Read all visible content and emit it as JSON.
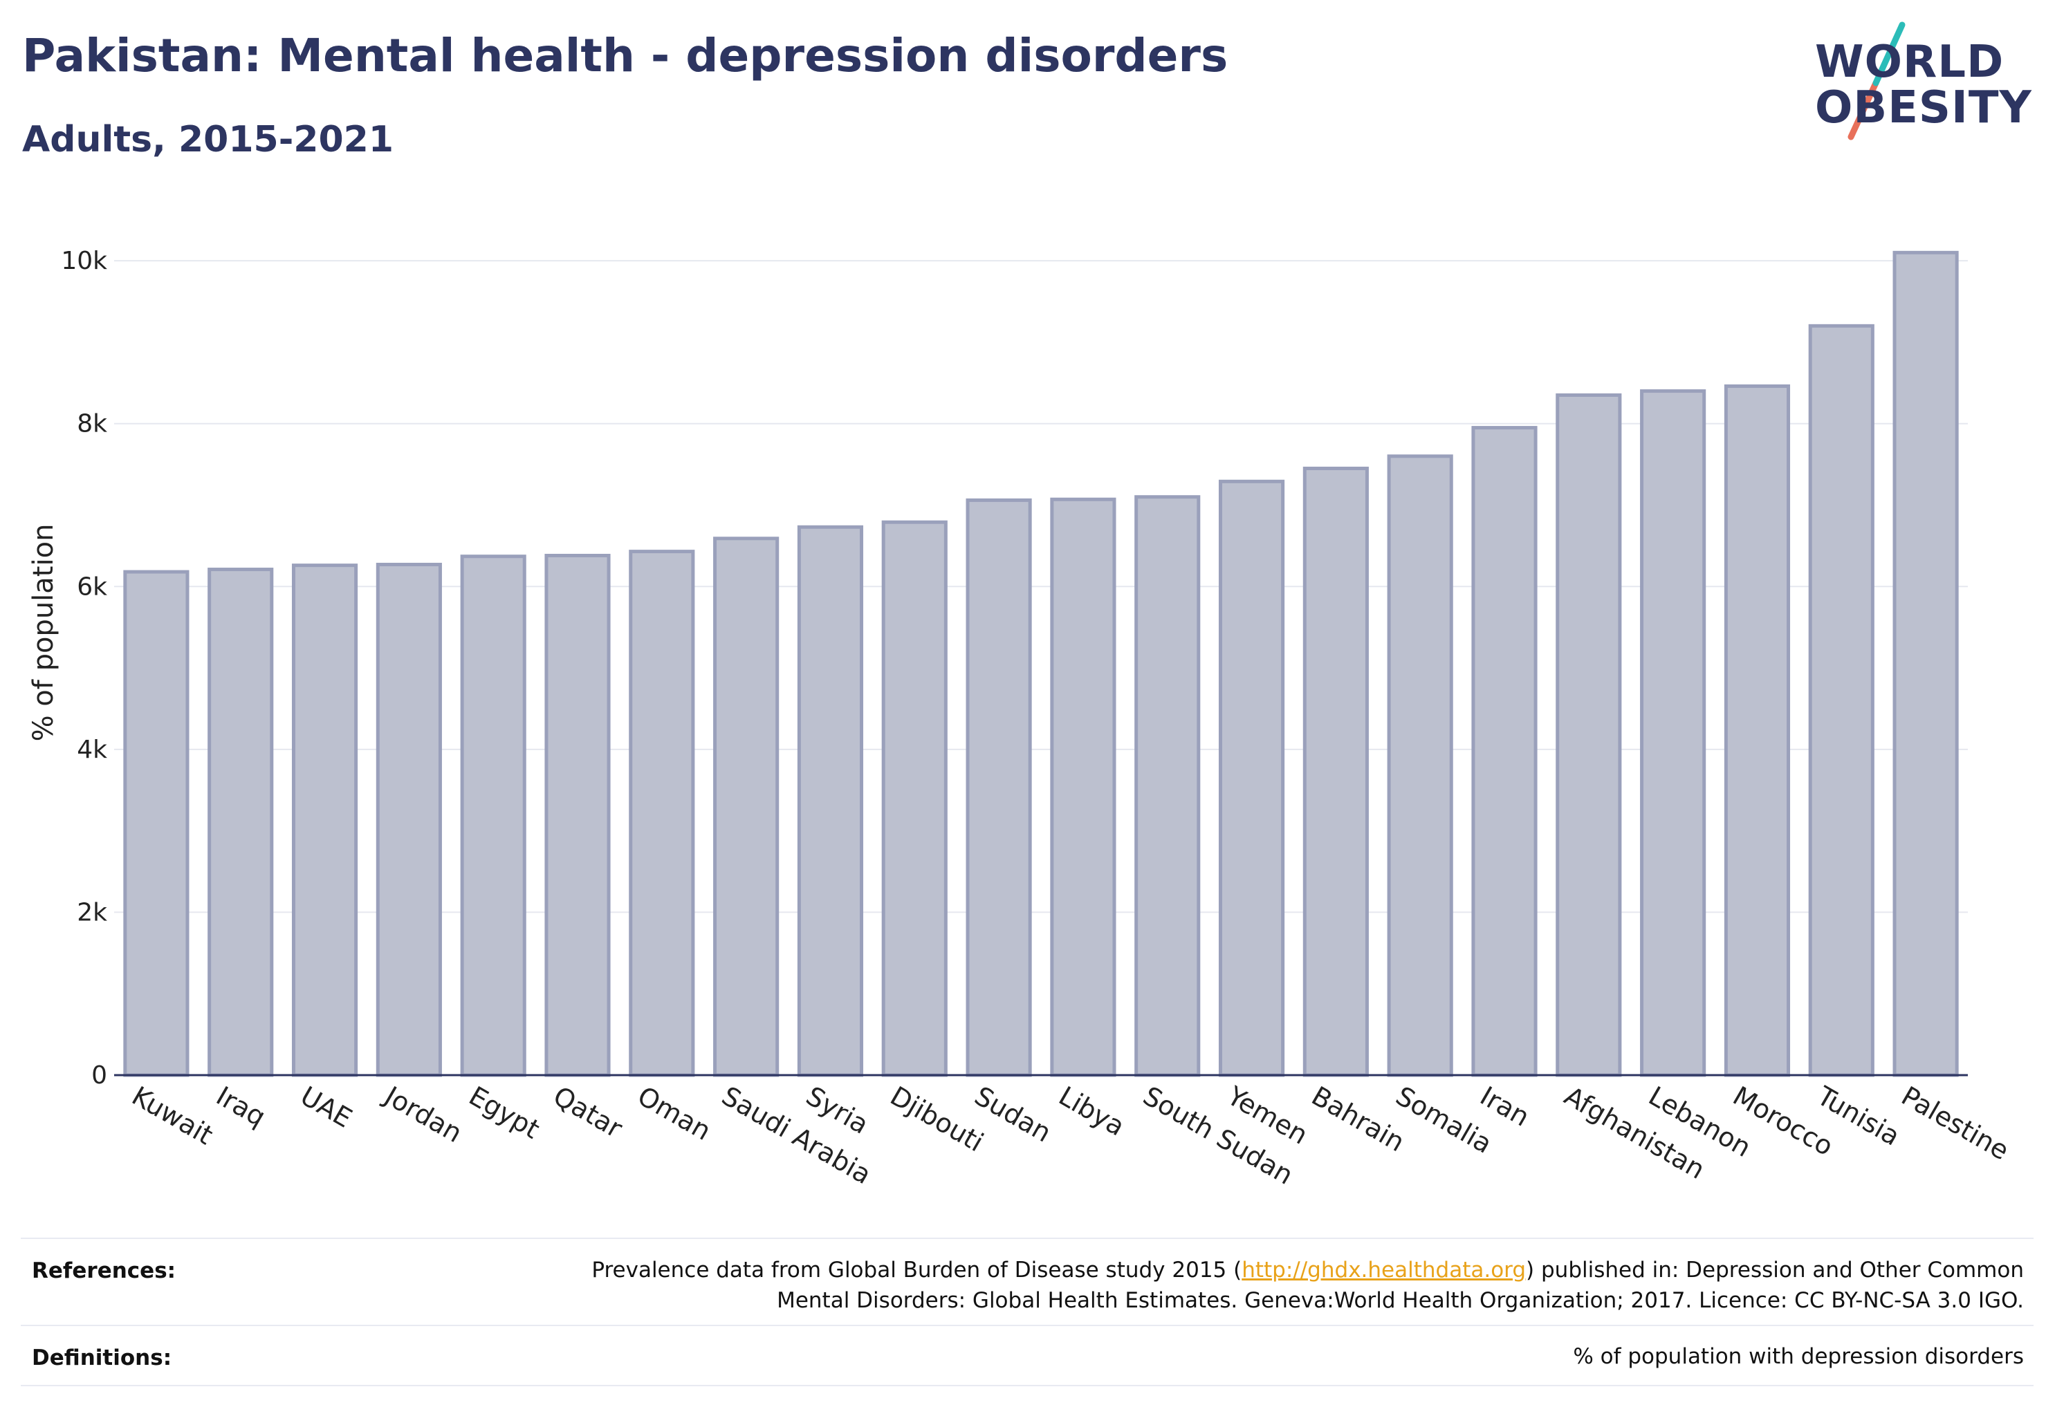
{
  "header": {
    "title": "Pakistan: Mental health - depression disorders",
    "subtitle": "Adults, 2015-2021"
  },
  "logo": {
    "line1": "WORLD",
    "line2": "OBESITY",
    "colors": {
      "text": "#2d3561",
      "slash_top": "#2bbcb8",
      "slash_bottom": "#e8705a"
    }
  },
  "chart_data": {
    "type": "bar",
    "categories": [
      "Kuwait",
      "Iraq",
      "UAE",
      "Jordan",
      "Egypt",
      "Qatar",
      "Oman",
      "Saudi Arabia",
      "Syria",
      "Djibouti",
      "Sudan",
      "Libya",
      "South Sudan",
      "Yemen",
      "Bahrain",
      "Somalia",
      "Iran",
      "Afghanistan",
      "Lebanon",
      "Morocco",
      "Tunisia",
      "Palestine"
    ],
    "values": [
      6180,
      6210,
      6260,
      6270,
      6370,
      6380,
      6430,
      6590,
      6730,
      6790,
      7060,
      7070,
      7100,
      7290,
      7450,
      7600,
      7950,
      8350,
      8400,
      8460,
      9200,
      10100
    ],
    "ylabel": "% of population",
    "ylim": [
      0,
      10400
    ],
    "yticks": [
      0,
      2000,
      4000,
      6000,
      8000,
      10000
    ],
    "ytick_labels": [
      "0",
      "2k",
      "4k",
      "6k",
      "8k",
      "10k"
    ],
    "grid": true,
    "colors": {
      "bar_fill": "#bcc0cf",
      "bar_stroke": "#9aa0bb",
      "grid": "#e6e8ef",
      "axis": "#2d3561"
    }
  },
  "footer": {
    "references_label": "References:",
    "references_line1_pre": "Prevalence data from Global Burden of Disease study 2015 (",
    "references_link": "http://ghdx.healthdata.org",
    "references_line1_post": ") published in: Depression and Other Common",
    "references_line2": "Mental Disorders: Global Health Estimates. Geneva:World Health Organization; 2017. Licence: CC BY-NC-SA 3.0 IGO.",
    "definitions_label": "Definitions:",
    "definitions_text": "% of population with depression disorders",
    "link_color": "#e8a21a"
  }
}
